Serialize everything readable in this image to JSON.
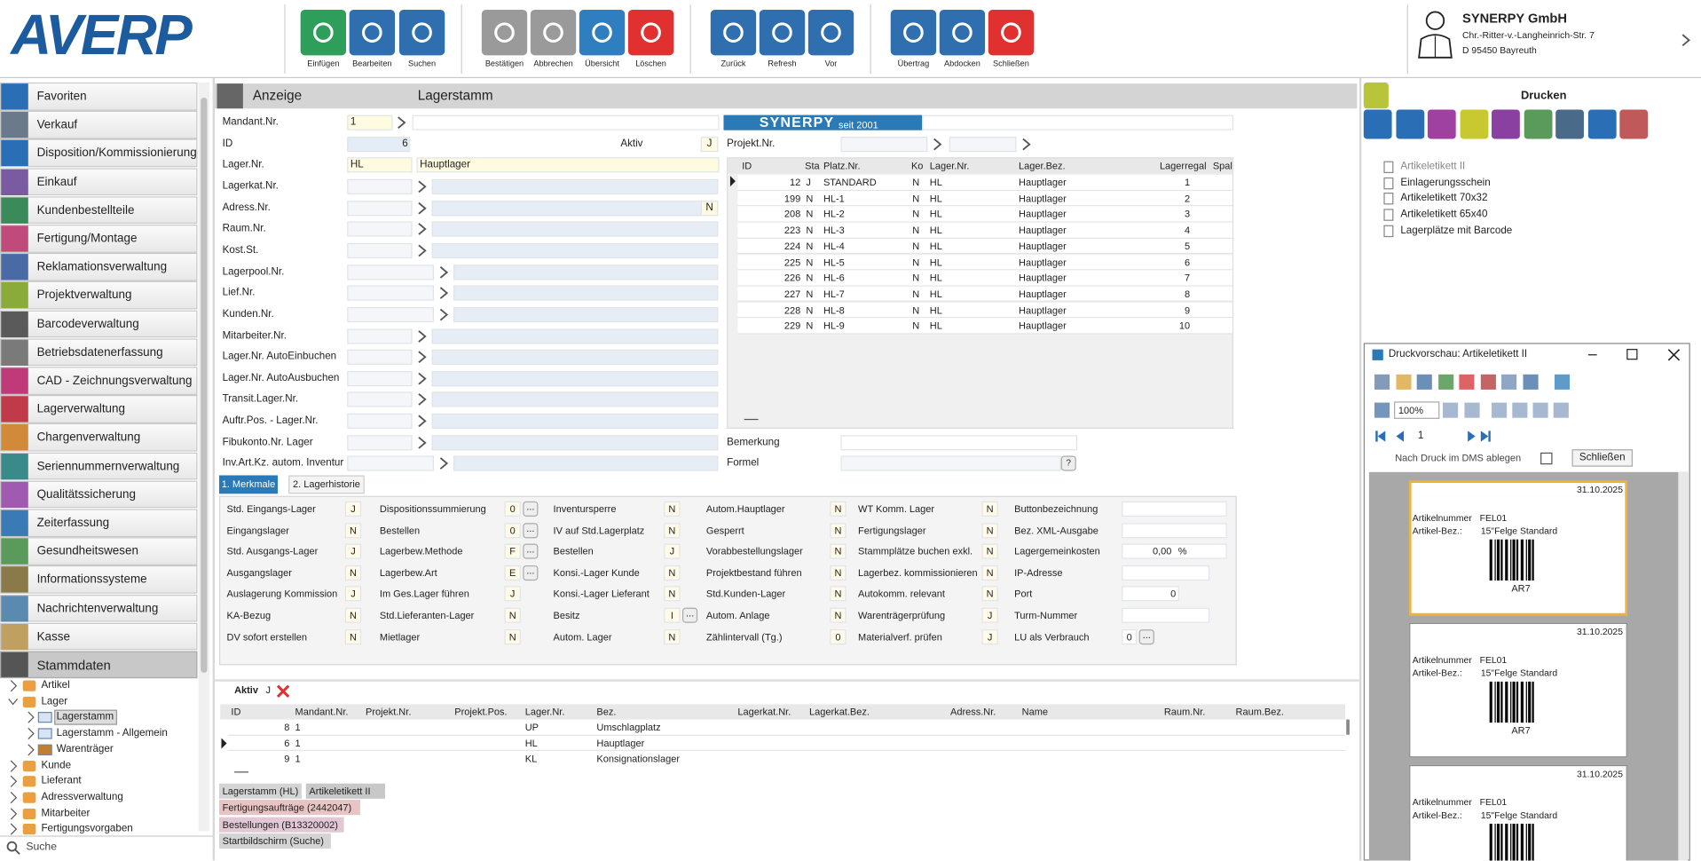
{
  "logo": "AVERP",
  "toolbar": [
    [
      "Einfügen",
      "Bearbeiten",
      "Suchen"
    ],
    [
      "Bestätigen",
      "Abbrechen",
      "Übersicht",
      "Löschen"
    ],
    [
      "Zurück",
      "Refresh",
      "Vor"
    ],
    [
      "Übertrag",
      "Abdocken",
      "Schließen"
    ]
  ],
  "company": {
    "name": "SYNERPY GmbH",
    "street": "Chr.-Ritter-v.-Langheinrich-Str. 7",
    "city": "D 95450 Bayreuth"
  },
  "menu": [
    "Favoriten",
    "Verkauf",
    "Disposition/Kommissionierung",
    "Einkauf",
    "Kundenbestellteile",
    "Fertigung/Montage",
    "Reklamationsverwaltung",
    "Projektverwaltung",
    "Barcodeverwaltung",
    "Betriebsdatenerfassung",
    "CAD - Zeichnungsverwaltung",
    "Lagerverwaltung",
    "Chargenverwaltung",
    "Seriennummernverwaltung",
    "Qualitätssicherung",
    "Zeiterfassung",
    "Gesundheitswesen",
    "Informationssysteme",
    "Nachrichtenverwaltung",
    "Kasse"
  ],
  "menu_section": "Stammdaten",
  "tree": [
    {
      "label": "Artikel"
    },
    {
      "label": "Lager",
      "children": [
        "Lagerstamm",
        "Lagerstamm - Allgemein",
        "Warenträger"
      ]
    },
    {
      "label": "Kunde"
    },
    {
      "label": "Lieferant"
    },
    {
      "label": "Adressverwaltung"
    },
    {
      "label": "Mitarbeiter"
    },
    {
      "label": "Fertigungsvorgaben"
    }
  ],
  "search": "Suche",
  "form": {
    "mode": "Anzeige",
    "title": "Lagerstamm",
    "banner": {
      "brand": "SYNERPY",
      "tagline": "seit 2001"
    },
    "fields": [
      {
        "label": "Mandant.Nr.",
        "value": "1"
      },
      {
        "label": "ID",
        "value": 6
      },
      {
        "label": "Lager.Nr.",
        "value": "HL",
        "text": "Hauptlager"
      },
      {
        "label": "Lagerkat.Nr."
      },
      {
        "label": "Adress.Nr.",
        "flag": "N"
      },
      {
        "label": "Raum.Nr."
      },
      {
        "label": "Kost.St."
      },
      {
        "label": "Lagerpool.Nr."
      },
      {
        "label": "Lief.Nr."
      },
      {
        "label": "Kunden.Nr."
      },
      {
        "label": "Mitarbeiter.Nr."
      },
      {
        "label": "Lager.Nr. AutoEinbuchen"
      },
      {
        "label": "Lager.Nr. AutoAusbuchen"
      },
      {
        "label": "Transit.Lager.Nr."
      },
      {
        "label": "Auftr.Pos. - Lager.Nr."
      },
      {
        "label": "Fibukonto.Nr. Lager"
      },
      {
        "label": "Inv.Art.Kz. autom. Inventur"
      }
    ],
    "aktiv": {
      "label": "Aktiv",
      "value": "J"
    },
    "projekt": "Projekt.Nr.",
    "bemerkung": "Bemerkung",
    "formel": "Formel",
    "help": "?"
  },
  "places": {
    "columns": [
      "ID",
      "Sta",
      "Platz.Nr.",
      "Ko",
      "Lager.Nr.",
      "Lager.Bez.",
      "Lagerregal",
      "Spal"
    ],
    "rows": [
      [
        12,
        "J",
        "STANDARD",
        "N",
        "HL",
        "Hauptlager",
        1
      ],
      [
        199,
        "N",
        "HL-1",
        "N",
        "HL",
        "Hauptlager",
        2
      ],
      [
        208,
        "N",
        "HL-2",
        "N",
        "HL",
        "Hauptlager",
        3
      ],
      [
        223,
        "N",
        "HL-3",
        "N",
        "HL",
        "Hauptlager",
        4
      ],
      [
        224,
        "N",
        "HL-4",
        "N",
        "HL",
        "Hauptlager",
        5
      ],
      [
        225,
        "N",
        "HL-5",
        "N",
        "HL",
        "Hauptlager",
        6
      ],
      [
        226,
        "N",
        "HL-6",
        "N",
        "HL",
        "Hauptlager",
        7
      ],
      [
        227,
        "N",
        "HL-7",
        "N",
        "HL",
        "Hauptlager",
        8
      ],
      [
        228,
        "N",
        "HL-8",
        "N",
        "HL",
        "Hauptlager",
        9
      ],
      [
        229,
        "N",
        "HL-9",
        "N",
        "HL",
        "Hauptlager",
        10
      ]
    ]
  },
  "tabs": [
    "1. Merkmale",
    "2. Lagerhistorie"
  ],
  "features": [
    [
      {
        "label": "Std. Eingangs-Lager",
        "value": "J"
      },
      {
        "label": "Eingangslager",
        "value": "N"
      },
      {
        "label": "Std. Ausgangs-Lager",
        "value": "J"
      },
      {
        "label": "Ausgangslager",
        "value": "N"
      },
      {
        "label": "Auslagerung Kommission",
        "value": "J"
      },
      {
        "label": "KA-Bezug",
        "value": "N"
      },
      {
        "label": "DV sofort erstellen",
        "value": "N"
      }
    ],
    [
      {
        "label": "Dispositionssummierung",
        "value": "0",
        "button": "..."
      },
      {
        "label": "Bestellen",
        "value": "0",
        "button": "..."
      },
      {
        "label": "Lagerbew.Methode",
        "value": "F",
        "button": "..."
      },
      {
        "label": "Lagerbew.Art",
        "value": "E",
        "button": "..."
      },
      {
        "label": "Im Ges.Lager führen",
        "value": "J"
      },
      {
        "label": "Std.Lieferanten-Lager",
        "value": "N"
      },
      {
        "label": "Mietlager",
        "value": "N"
      }
    ],
    [
      {
        "label": "Inventursperre",
        "value": "N"
      },
      {
        "label": "IV auf Std.Lagerplatz",
        "value": "N"
      },
      {
        "label": "Bestellen",
        "value": "J"
      },
      {
        "label": "Konsi.-Lager Kunde",
        "value": "N"
      },
      {
        "label": "Konsi.-Lager Lieferant",
        "value": "N"
      },
      {
        "label": "Besitz",
        "value": "I",
        "button": "..."
      },
      {
        "label": "Autom. Lager",
        "value": "N"
      }
    ],
    [
      {
        "label": "Autom.Hauptlager",
        "value": "N"
      },
      {
        "label": "Gesperrt",
        "value": "N"
      },
      {
        "label": "Vorabbestellungslager",
        "value": "N"
      },
      {
        "label": "Projektbestand führen",
        "value": "N"
      },
      {
        "label": "Std.Kunden-Lager",
        "value": "N"
      },
      {
        "label": "Autom. Anlage",
        "value": "N"
      },
      {
        "label": "Zählintervall (Tg.)",
        "value": "0"
      }
    ],
    [
      {
        "label": "WT Komm. Lager",
        "value": "N"
      },
      {
        "label": "Fertigungslager",
        "value": "N"
      },
      {
        "label": "Stammplätze buchen exkl.",
        "value": "N"
      },
      {
        "label": "Lagerbez. kommissionieren",
        "value": "N"
      },
      {
        "label": "Autokomm. relevant",
        "value": "N"
      },
      {
        "label": "Warenträgerprüfung",
        "value": "J"
      },
      {
        "label": "Materialverf. prüfen",
        "value": "J"
      }
    ],
    [
      {
        "label": "Buttonbezeichnung"
      },
      {
        "label": "Bez. XML-Ausgabe"
      },
      {
        "label": "Lagergemeinkosten",
        "value": "0,00",
        "unit": "%"
      },
      {
        "label": "IP-Adresse"
      },
      {
        "label": "Port",
        "value": "0"
      },
      {
        "label": "Turm-Nummer"
      },
      {
        "label": "LU als Verbrauch",
        "value": "0",
        "button": "..."
      }
    ]
  ],
  "grid": {
    "filter": {
      "label": "Aktiv",
      "value": "J"
    },
    "columns": [
      "ID",
      "Mandant.Nr.",
      "Projekt.Nr.",
      "Projekt.Pos.",
      "Lager.Nr.",
      "Bez.",
      "Lagerkat.Nr.",
      "Lagerkat.Bez.",
      "Adress.Nr.",
      "Name",
      "Raum.Nr.",
      "Raum.Bez."
    ],
    "rows": [
      {
        "id": 8,
        "mandant": 1,
        "lager": "UP",
        "bez": "Umschlagplatz"
      },
      {
        "id": 6,
        "mandant": 1,
        "lager": "HL",
        "bez": "Hauptlager"
      },
      {
        "id": 9,
        "mandant": 1,
        "lager": "KL",
        "bez": "Konsignationslager"
      }
    ]
  },
  "windows": [
    "Lagerstamm (HL)",
    "Artikeletikett II",
    "Fertigungsaufträge (2442047)",
    "Bestellungen (B13320002)",
    "Startbildschirm (Suche)"
  ],
  "print": {
    "title": "Drucken",
    "reports": [
      "Artikeletikett II",
      "Einlagerungsschein",
      "Artikeletikett 70x32",
      "Artikeletikett 65x40",
      "Lagerplätze mit Barcode"
    ]
  },
  "preview": {
    "title": "Druckvorschau: Artikeletikett II",
    "zoom": "100%",
    "page": 1,
    "dms": "Nach Druck im DMS ablegen",
    "close": "Schließen",
    "labels": [
      {
        "date": "31.10.2025",
        "nr_label": "Artikelnummer",
        "nr": "FEL01",
        "bez_label": "Artikel-Bez.:",
        "bez": "15\"Felge Standard",
        "code": "AR7"
      },
      {
        "date": "31.10.2025",
        "nr_label": "Artikelnummer",
        "nr": "FEL01",
        "bez_label": "Artikel-Bez.:",
        "bez": "15\"Felge Standard",
        "code": "AR7"
      },
      {
        "date": "31.10.2025",
        "nr_label": "Artikelnummer",
        "nr": "FEL01",
        "bez_label": "Artikel-Bez.:",
        "bez": "15\"Felge Standard"
      }
    ]
  }
}
